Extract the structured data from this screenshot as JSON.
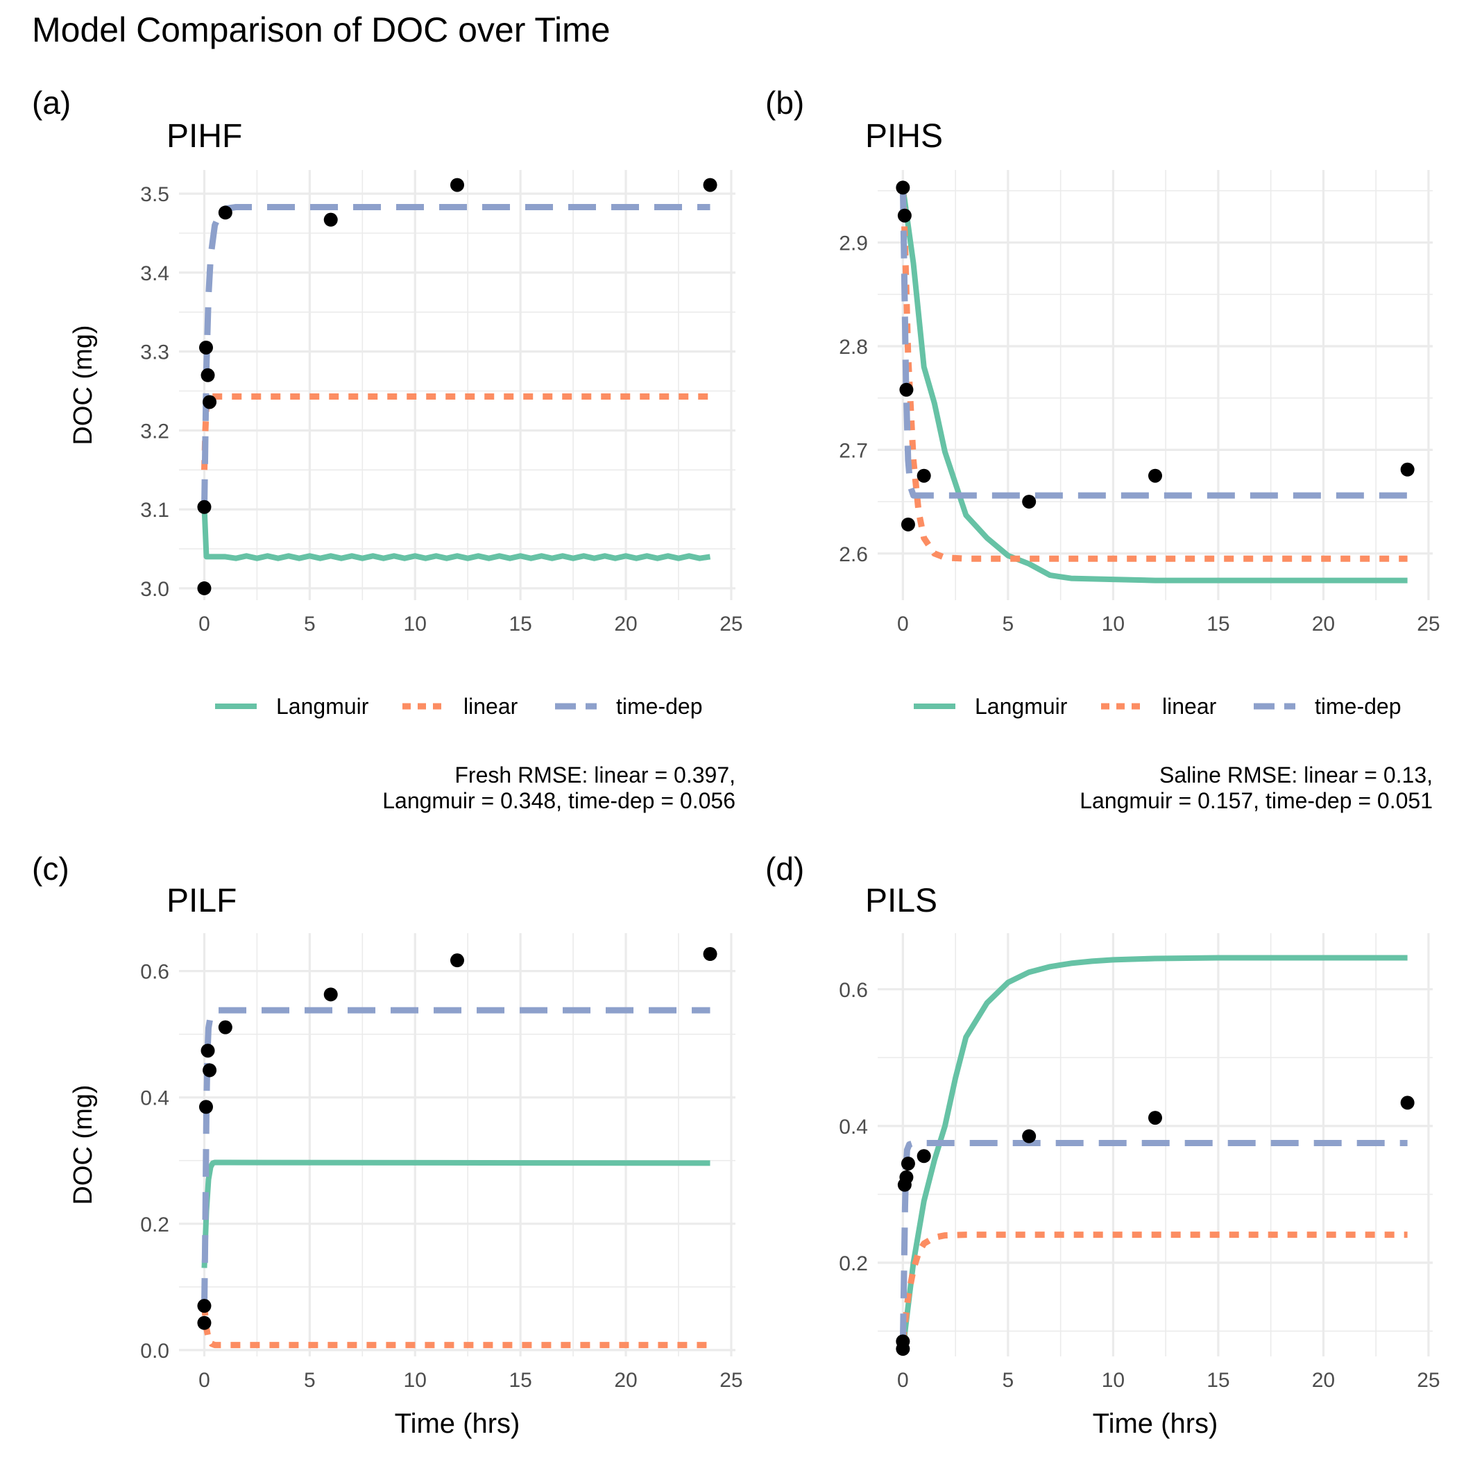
{
  "figure_title": "Model Comparison of DOC over Time",
  "colors": {
    "Langmuir": "#66c2a5",
    "linear": "#fc8d62",
    "time-dep": "#8da0cb",
    "points": "#000000",
    "grid": "#ebebeb",
    "tick_text": "#4d4d4d",
    "text": "#000000"
  },
  "chart_data": [
    {
      "type": "line",
      "panel_tag": "(a)",
      "title": "PIHF",
      "xlabel": "",
      "ylabel": "DOC (mg)",
      "xlim": [
        -1.2,
        25.2
      ],
      "ylim": [
        2.985,
        3.53
      ],
      "xticks": [
        0,
        5,
        10,
        15,
        20,
        25
      ],
      "yticks": [
        3.0,
        3.1,
        3.2,
        3.3,
        3.4,
        3.5
      ],
      "ytick_decimals": 1,
      "grid": true,
      "legend": {
        "placement": "bottom",
        "entries": [
          "Langmuir",
          "linear",
          "time-dep"
        ]
      },
      "caption": [
        "Fresh RMSE: linear = 0.397,",
        "Langmuir = 0.348, time-dep = 0.056"
      ],
      "points": {
        "x": [
          0,
          0,
          0.083,
          0.167,
          0.25,
          1,
          6,
          12,
          24
        ],
        "y": [
          3.0,
          3.103,
          3.305,
          3.27,
          3.236,
          3.476,
          3.467,
          3.511,
          3.511
        ]
      },
      "series": [
        {
          "name": "Langmuir",
          "style": "solid",
          "x": [
            0,
            0.1,
            0.5,
            1,
            1.5,
            2,
            2.5,
            3,
            3.5,
            4,
            4.5,
            5,
            5.5,
            6,
            6.5,
            7,
            7.5,
            8,
            8.5,
            9,
            9.5,
            10,
            10.5,
            11,
            11.5,
            12,
            12.5,
            13,
            13.5,
            14,
            14.5,
            15,
            15.5,
            16,
            16.5,
            17,
            17.5,
            18,
            18.5,
            19,
            19.5,
            20,
            20.5,
            21,
            21.5,
            22,
            22.5,
            23,
            23.5,
            24
          ],
          "y": [
            3.103,
            3.04,
            3.04,
            3.04,
            3.038,
            3.041,
            3.038,
            3.041,
            3.038,
            3.041,
            3.038,
            3.041,
            3.038,
            3.041,
            3.038,
            3.041,
            3.038,
            3.041,
            3.038,
            3.041,
            3.038,
            3.041,
            3.038,
            3.041,
            3.038,
            3.041,
            3.038,
            3.041,
            3.038,
            3.041,
            3.038,
            3.041,
            3.038,
            3.041,
            3.038,
            3.041,
            3.038,
            3.041,
            3.038,
            3.041,
            3.038,
            3.041,
            3.038,
            3.041,
            3.038,
            3.041,
            3.038,
            3.041,
            3.038,
            3.04
          ]
        },
        {
          "name": "linear",
          "style": "dotted",
          "x": [
            0,
            0.05,
            0.1,
            0.15,
            0.2,
            0.3,
            24
          ],
          "y": [
            3.15,
            3.2,
            3.23,
            3.24,
            3.243,
            3.243,
            3.243
          ]
        },
        {
          "name": "time-dep",
          "style": "dashed",
          "x": [
            0,
            0.1,
            0.2,
            0.3,
            0.5,
            0.75,
            1,
            1.5,
            24
          ],
          "y": [
            3.103,
            3.28,
            3.37,
            3.42,
            3.46,
            3.475,
            3.481,
            3.483,
            3.483
          ]
        }
      ]
    },
    {
      "type": "line",
      "panel_tag": "(b)",
      "title": "PIHS",
      "xlabel": "",
      "ylabel": "",
      "xlim": [
        -1.2,
        25.2
      ],
      "ylim": [
        2.555,
        2.97
      ],
      "xticks": [
        0,
        5,
        10,
        15,
        20,
        25
      ],
      "yticks": [
        2.6,
        2.7,
        2.8,
        2.9
      ],
      "ytick_decimals": 1,
      "grid": true,
      "legend": {
        "placement": "bottom",
        "entries": [
          "Langmuir",
          "linear",
          "time-dep"
        ]
      },
      "caption": [
        "Saline RMSE: linear = 0.13,",
        "Langmuir = 0.157, time-dep = 0.051"
      ],
      "points": {
        "x": [
          0,
          0.083,
          0.167,
          0.25,
          1,
          6,
          12,
          24
        ],
        "y": [
          2.953,
          2.926,
          2.758,
          2.628,
          2.675,
          2.65,
          2.675,
          2.681
        ]
      },
      "series": [
        {
          "name": "Langmuir",
          "style": "solid",
          "x": [
            0,
            0.5,
            1,
            1.5,
            2,
            3,
            4,
            5,
            6,
            7,
            8,
            10,
            12,
            15,
            20,
            24
          ],
          "y": [
            2.953,
            2.88,
            2.78,
            2.745,
            2.698,
            2.637,
            2.615,
            2.598,
            2.59,
            2.579,
            2.576,
            2.575,
            2.574,
            2.574,
            2.574,
            2.574
          ]
        },
        {
          "name": "linear",
          "style": "dotted",
          "x": [
            0,
            0.1,
            0.25,
            0.5,
            0.75,
            1,
            1.5,
            2,
            3,
            24
          ],
          "y": [
            2.953,
            2.9,
            2.79,
            2.69,
            2.64,
            2.615,
            2.6,
            2.596,
            2.595,
            2.595
          ]
        },
        {
          "name": "time-dep",
          "style": "dashed",
          "x": [
            0,
            0.08,
            0.15,
            0.25,
            0.35,
            0.5,
            24
          ],
          "y": [
            2.953,
            2.85,
            2.76,
            2.69,
            2.665,
            2.656,
            2.656
          ]
        }
      ]
    },
    {
      "type": "line",
      "panel_tag": "(c)",
      "title": "PILF",
      "xlabel": "Time (hrs)",
      "ylabel": "DOC (mg)",
      "xlim": [
        -1.2,
        25.2
      ],
      "ylim": [
        -0.01,
        0.66
      ],
      "xticks": [
        0,
        5,
        10,
        15,
        20,
        25
      ],
      "yticks": [
        0.0,
        0.2,
        0.4,
        0.6
      ],
      "ytick_decimals": 1,
      "grid": true,
      "legend": {
        "placement": "none",
        "entries": []
      },
      "caption": [],
      "points": {
        "x": [
          0,
          0,
          0.083,
          0.167,
          0.25,
          1,
          6,
          12,
          24
        ],
        "y": [
          0.043,
          0.07,
          0.385,
          0.474,
          0.443,
          0.511,
          0.563,
          0.617,
          0.627
        ]
      },
      "series": [
        {
          "name": "Langmuir",
          "style": "solid",
          "x": [
            0,
            0.1,
            0.2,
            0.3,
            0.4,
            0.5,
            1,
            24
          ],
          "y": [
            0.13,
            0.22,
            0.27,
            0.29,
            0.296,
            0.297,
            0.297,
            0.296
          ]
        },
        {
          "name": "linear",
          "style": "dotted",
          "x": [
            0,
            0.1,
            0.2,
            0.35,
            0.5,
            24
          ],
          "y": [
            0.07,
            0.035,
            0.018,
            0.01,
            0.008,
            0.008
          ]
        },
        {
          "name": "time-dep",
          "style": "dashed",
          "x": [
            0,
            0.05,
            0.1,
            0.15,
            0.2,
            0.3,
            0.5,
            24
          ],
          "y": [
            0.07,
            0.2,
            0.38,
            0.47,
            0.51,
            0.53,
            0.538,
            0.538
          ]
        }
      ]
    },
    {
      "type": "line",
      "panel_tag": "(d)",
      "title": "PILS",
      "xlabel": "Time (hrs)",
      "ylabel": "",
      "xlim": [
        -1.2,
        25.2
      ],
      "ylim": [
        0.063,
        0.682
      ],
      "xticks": [
        0,
        5,
        10,
        15,
        20,
        25
      ],
      "yticks": [
        0.2,
        0.4,
        0.6
      ],
      "ytick_decimals": 1,
      "grid": true,
      "legend": {
        "placement": "none",
        "entries": []
      },
      "caption": [],
      "points": {
        "x": [
          0,
          0,
          0.083,
          0.167,
          0.25,
          1,
          6,
          12,
          24
        ],
        "y": [
          0.074,
          0.085,
          0.314,
          0.325,
          0.345,
          0.356,
          0.385,
          0.412,
          0.434
        ]
      },
      "series": [
        {
          "name": "Langmuir",
          "style": "solid",
          "x": [
            0,
            0.5,
            1,
            1.5,
            2,
            2.5,
            3,
            4,
            5,
            6,
            7,
            8,
            9,
            10,
            12,
            15,
            20,
            24
          ],
          "y": [
            0.074,
            0.2,
            0.29,
            0.35,
            0.4,
            0.47,
            0.53,
            0.58,
            0.61,
            0.625,
            0.633,
            0.638,
            0.641,
            0.643,
            0.645,
            0.646,
            0.646,
            0.646
          ]
        },
        {
          "name": "linear",
          "style": "dotted",
          "x": [
            0,
            0.25,
            0.5,
            0.75,
            1,
            1.5,
            2,
            3,
            24
          ],
          "y": [
            0.085,
            0.15,
            0.19,
            0.215,
            0.228,
            0.237,
            0.24,
            0.241,
            0.241
          ]
        },
        {
          "name": "time-dep",
          "style": "dashed",
          "x": [
            0,
            0.05,
            0.1,
            0.15,
            0.2,
            0.3,
            0.5,
            24
          ],
          "y": [
            0.085,
            0.18,
            0.28,
            0.34,
            0.365,
            0.373,
            0.375,
            0.375
          ]
        }
      ]
    }
  ]
}
